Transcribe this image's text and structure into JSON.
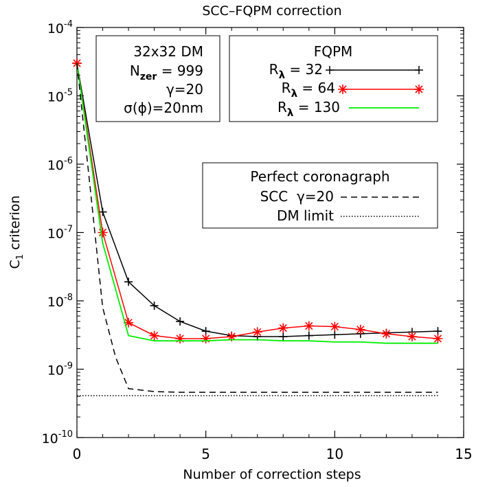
{
  "chart_data": {
    "type": "line",
    "title": "SCC–FQPM correction",
    "xlabel": "Number of correction steps",
    "ylabel_main": "C",
    "ylabel_sub": "1",
    "ylabel_rest": " criterion",
    "xlim": [
      0,
      15
    ],
    "ylim": [
      1e-10,
      0.0001
    ],
    "yscale": "log",
    "grid": false,
    "x_ticks": [
      0,
      5,
      10,
      15
    ],
    "x_tick_labels": [
      "0",
      "5",
      "10",
      "15"
    ],
    "y_ticks": [
      1e-10,
      1e-09,
      1e-08,
      1e-07,
      1e-06,
      1e-05,
      0.0001
    ],
    "y_tick_exponents": [
      "-10",
      "-9",
      "-8",
      "-7",
      "-6",
      "-5",
      "-4"
    ],
    "y_tick_base": "10",
    "info_box": {
      "line1": "32x32 DM",
      "line2_main": "N",
      "line2_sub": "zer",
      "line2_rest": " = 999",
      "line3": "γ=20",
      "line4": "σ(ϕ)=20nm"
    },
    "legend_fqpm": {
      "title": "FQPM",
      "entries": [
        {
          "main": "R",
          "sub": "λ",
          "rest": " = 32"
        },
        {
          "main": "R",
          "sub": "λ",
          "rest": " = 64"
        },
        {
          "main": "R",
          "sub": "λ",
          "rest": " = 130"
        }
      ]
    },
    "legend_perfect": {
      "title": "Perfect coronagraph",
      "entry1": "SCC  γ=20",
      "entry2": "DM limit"
    },
    "series": [
      {
        "name": "Rλ = 32",
        "color": "#000000",
        "marker": "plus",
        "x": [
          0,
          1,
          2,
          3,
          4,
          5,
          6,
          7,
          8,
          9,
          10,
          11,
          12,
          13,
          14
        ],
        "y": [
          3e-05,
          2e-07,
          1.9e-08,
          8.5e-09,
          5e-09,
          3.6e-09,
          3.1e-09,
          3e-09,
          3e-09,
          3.1e-09,
          3.2e-09,
          3.3e-09,
          3.4e-09,
          3.5e-09,
          3.6e-09
        ]
      },
      {
        "name": "Rλ = 64",
        "color": "#ff0000",
        "marker": "asterisk",
        "x": [
          0,
          1,
          2,
          3,
          4,
          5,
          6,
          7,
          8,
          9,
          10,
          11,
          12,
          13,
          14
        ],
        "y": [
          3e-05,
          1e-07,
          4.8e-09,
          3.1e-09,
          2.8e-09,
          2.8e-09,
          3e-09,
          3.5e-09,
          4e-09,
          4.3e-09,
          4.2e-09,
          3.8e-09,
          3.3e-09,
          3e-09,
          2.8e-09
        ]
      },
      {
        "name": "Rλ = 130",
        "color": "#00ee00",
        "marker": "none",
        "x": [
          0,
          1,
          2,
          3,
          4,
          5,
          6,
          7,
          8,
          9,
          10,
          11,
          12,
          13,
          14
        ],
        "y": [
          3e-05,
          7e-08,
          3.1e-09,
          2.6e-09,
          2.6e-09,
          2.6e-09,
          2.7e-09,
          2.7e-09,
          2.6e-09,
          2.6e-09,
          2.5e-09,
          2.5e-09,
          2.4e-09,
          2.4e-09,
          2.4e-09
        ]
      },
      {
        "name": "SCC γ=20 (perfect coronagraph)",
        "color": "#000000",
        "style": "dashed",
        "marker": "none",
        "x": [
          0,
          0.5,
          1,
          1.5,
          2,
          3,
          4,
          6,
          8,
          10,
          12,
          14
        ],
        "y": [
          3e-05,
          5e-07,
          8e-09,
          1.5e-09,
          5.2e-10,
          4.7e-10,
          4.6e-10,
          4.6e-10,
          4.6e-10,
          4.6e-10,
          4.6e-10,
          4.6e-10
        ]
      },
      {
        "name": "DM limit",
        "color": "#000000",
        "style": "dotted",
        "marker": "none",
        "x": [
          0,
          14
        ],
        "y": [
          4.1e-10,
          4.1e-10
        ]
      }
    ]
  }
}
